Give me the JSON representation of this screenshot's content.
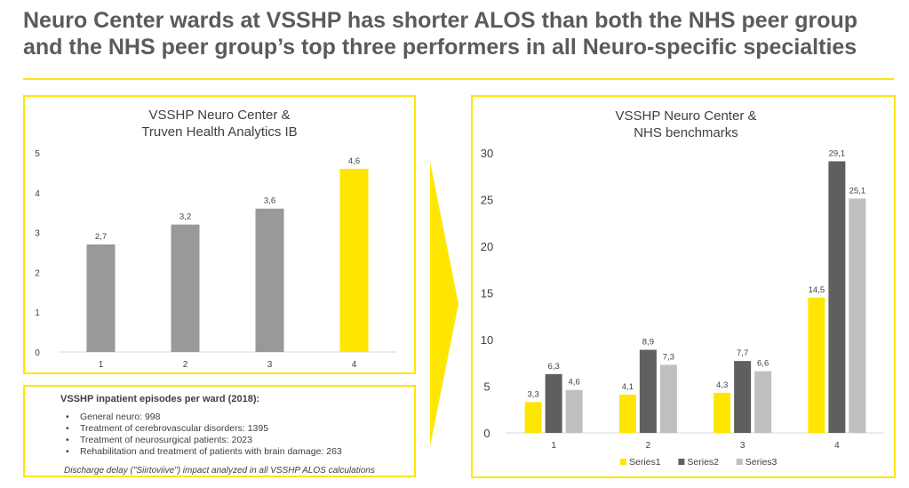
{
  "slide": {
    "title_line1": "Neuro Center wards at VSSHP has shorter ALOS than both the NHS peer group",
    "title_line2": "and the NHS peer group’s top three performers in all Neuro-specific specialties",
    "accent_color": "#ffe600",
    "arrow_icon": "right-arrow-chevron-icon"
  },
  "info_box": {
    "heading": "VSSHP inpatient episodes per ward (2018):",
    "items": [
      "General neuro: 998",
      "Treatment of cerebrovascular disorders: 1395",
      "Treatment of neurosurgical patients: 2023",
      "Rehabilitation and treatment of patients with brain damage: 263"
    ],
    "bullet": "•",
    "note": "Discharge delay (\"Siirtoviive\") impact analyzed in all VSSHP ALOS calculations"
  },
  "chart_data": [
    {
      "type": "bar",
      "title_line1": "VSSHP Neuro Center &",
      "title_line2": "Truven Health Analytics IB",
      "categories": [
        "1",
        "2",
        "3",
        "4"
      ],
      "values": [
        2.7,
        3.2,
        3.6,
        4.6
      ],
      "value_labels": [
        "2,7",
        "3,2",
        "3,6",
        "4,6"
      ],
      "colors": [
        "#999999",
        "#999999",
        "#999999",
        "#ffe600"
      ],
      "ylim": [
        0,
        5
      ],
      "yticks": [
        "0",
        "1",
        "2",
        "3",
        "4",
        "5"
      ],
      "grid": false,
      "legend": "none"
    },
    {
      "type": "bar",
      "title_line1": "VSSHP Neuro Center &",
      "title_line2": "NHS benchmarks",
      "categories": [
        "1",
        "2",
        "3",
        "4"
      ],
      "series": [
        {
          "name": "Series1",
          "color": "#ffe600",
          "values": [
            3.3,
            4.1,
            4.3,
            14.5
          ],
          "labels": [
            "3,3",
            "4,1",
            "4,3",
            "14,5"
          ]
        },
        {
          "name": "Series2",
          "color": "#5f5f5f",
          "values": [
            6.3,
            8.9,
            7.7,
            29.1
          ],
          "labels": [
            "6,3",
            "8,9",
            "7,7",
            "29,1"
          ]
        },
        {
          "name": "Series3",
          "color": "#c0c0c0",
          "values": [
            4.6,
            7.3,
            6.6,
            25.1
          ],
          "labels": [
            "4,6",
            "7,3",
            "6,6",
            "25,1"
          ]
        }
      ],
      "ylim": [
        0,
        30
      ],
      "yticks": [
        "0",
        "5",
        "10",
        "15",
        "20",
        "25",
        "30"
      ],
      "grid": false,
      "legend": "bottom"
    }
  ]
}
